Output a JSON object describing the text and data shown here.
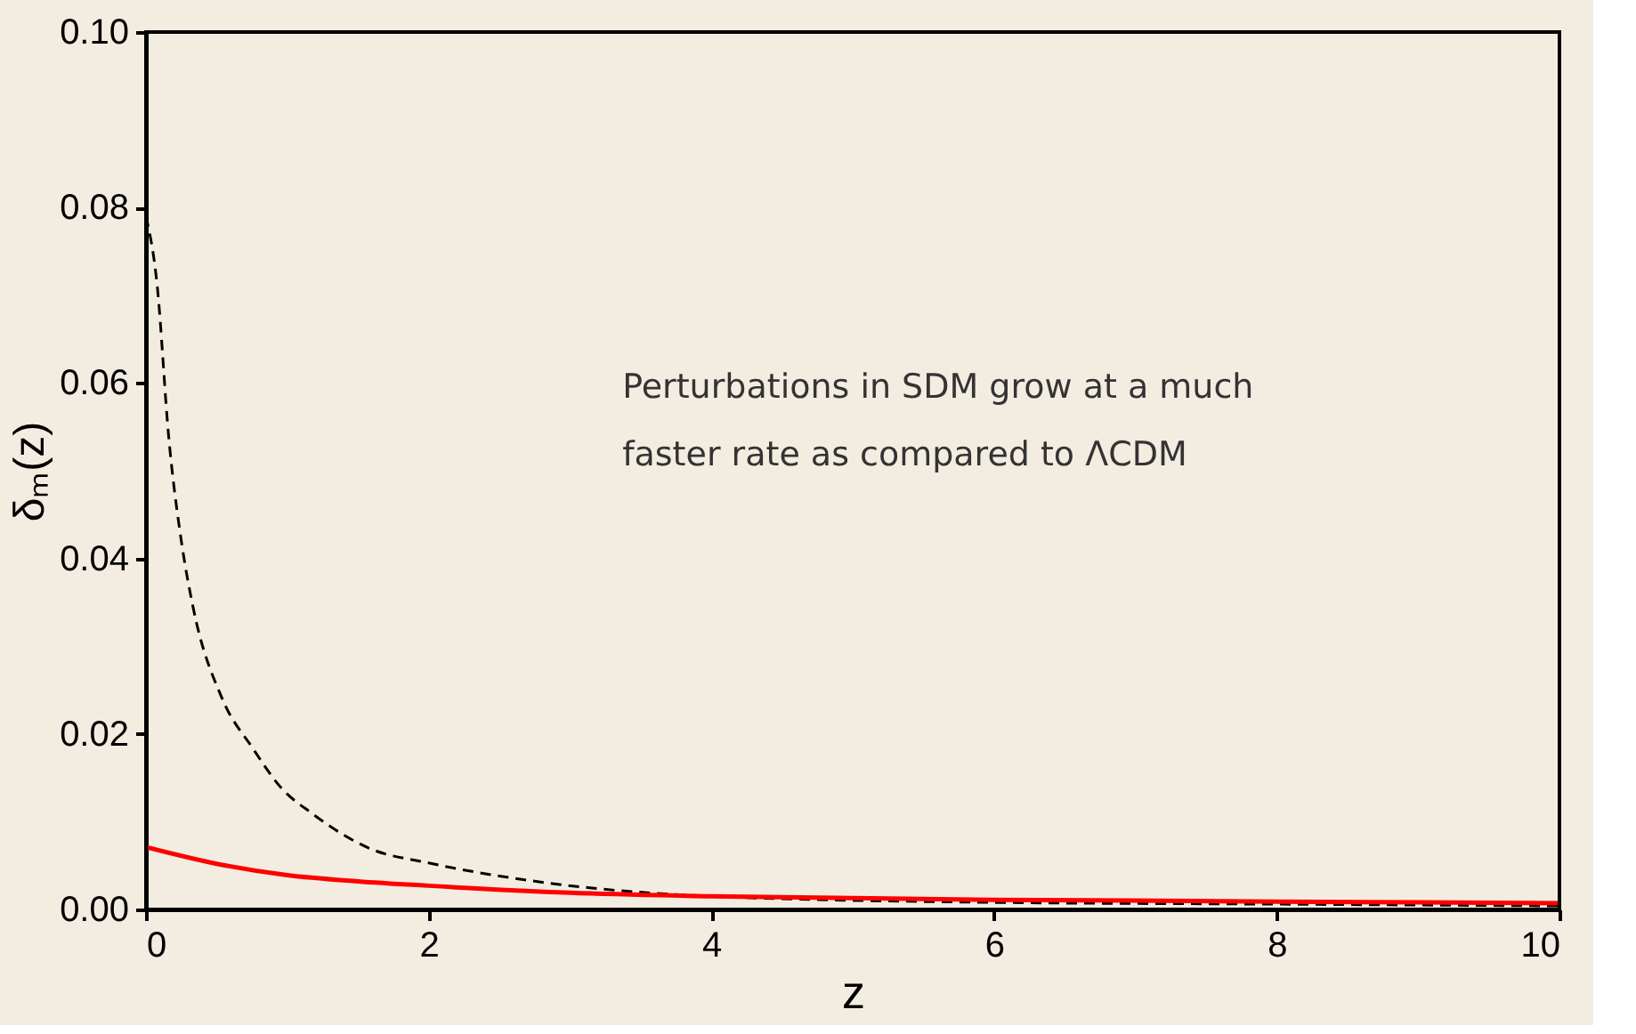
{
  "chart_data": {
    "type": "line",
    "xlabel": "z",
    "ylabel": "δₘ(z)",
    "xlim": [
      0,
      10
    ],
    "xticks": [
      0,
      2,
      4,
      6,
      8,
      10
    ],
    "ylim": [
      0,
      0.1
    ],
    "yticks": [
      {
        "value": 0,
        "label": "0.00"
      },
      0.02,
      0.04,
      0.06,
      0.08,
      {
        "value": 0.1,
        "label": "0.10"
      }
    ],
    "grid": false,
    "annotations": [
      "Perturbations in SDM grow at a much",
      "faster rate as compared to ΛCDM"
    ],
    "series": [
      {
        "color": "#000000",
        "line_style": "dashed",
        "x": [
          0,
          0.08,
          0.16,
          0.25,
          0.33,
          0.54,
          0.75,
          0.96,
          1.17,
          1.59,
          2.0,
          2.85,
          4,
          6,
          8,
          10
        ],
        "values": [
          0.079,
          0.071,
          0.054,
          0.042,
          0.0347,
          0.024,
          0.0185,
          0.0138,
          0.011,
          0.0069,
          0.0053,
          0.003,
          0.0015,
          0.0008,
          0.0006,
          0.0004
        ]
      },
      {
        "color": "#ff0000",
        "line_style": "solid",
        "x": [
          0,
          0.5,
          1,
          1.5,
          2,
          3,
          4,
          6,
          8,
          10
        ],
        "values": [
          0.0071,
          0.0052,
          0.0039,
          0.0032,
          0.0027,
          0.0019,
          0.0015,
          0.0011,
          0.0009,
          0.0007
        ]
      }
    ]
  }
}
